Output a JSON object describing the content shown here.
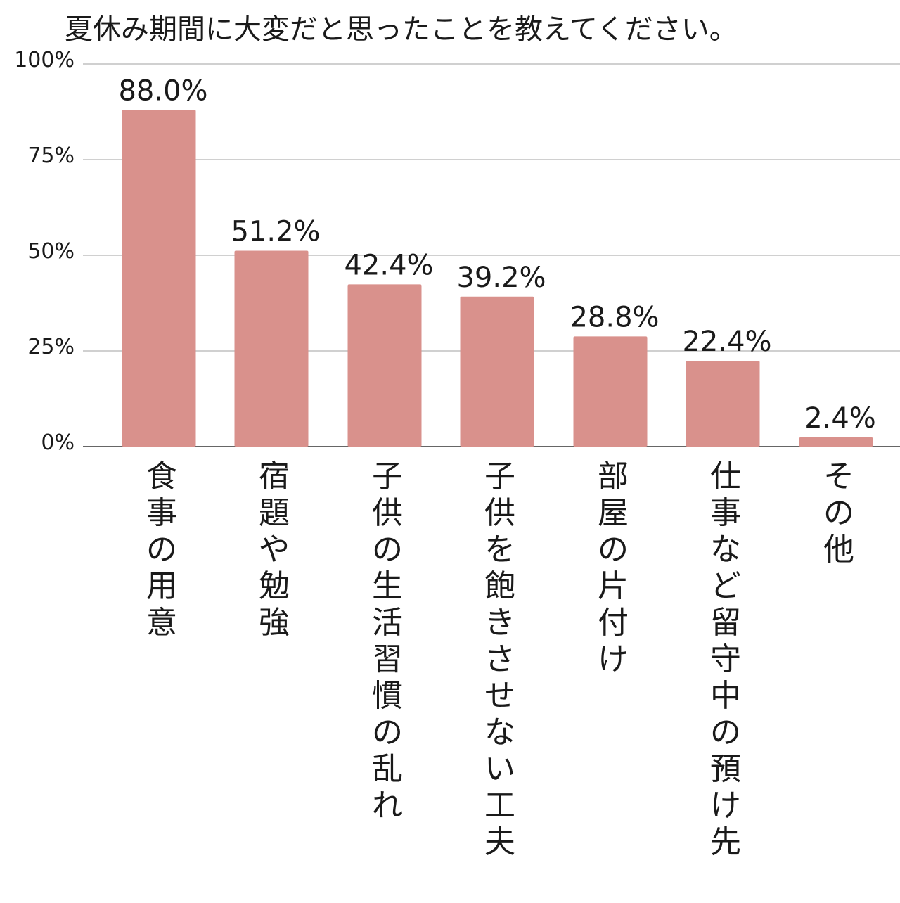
{
  "chart_data": {
    "type": "bar",
    "title": "夏休み期間に大変だと思ったことを教えてください。",
    "categories": [
      "食事の用意",
      "宿題や勉強",
      "子供の生活習慣の乱れ",
      "子供を飽きさせない工夫",
      "部屋の片付け",
      "仕事など留守中の預け先",
      "その他"
    ],
    "values": [
      88.0,
      51.2,
      42.4,
      39.2,
      28.8,
      22.4,
      2.4
    ],
    "data_labels": [
      "88.0%",
      "51.2%",
      "42.4%",
      "39.2%",
      "28.8%",
      "22.4%",
      "2.4%"
    ],
    "y_ticks": [
      0,
      25,
      50,
      75,
      100
    ],
    "y_tick_labels": [
      "0%",
      "25%",
      "50%",
      "75%",
      "100%"
    ],
    "ylim": [
      0,
      100
    ],
    "grid": true,
    "bar_color": "#d9918c",
    "category_orientation": "vertical"
  }
}
